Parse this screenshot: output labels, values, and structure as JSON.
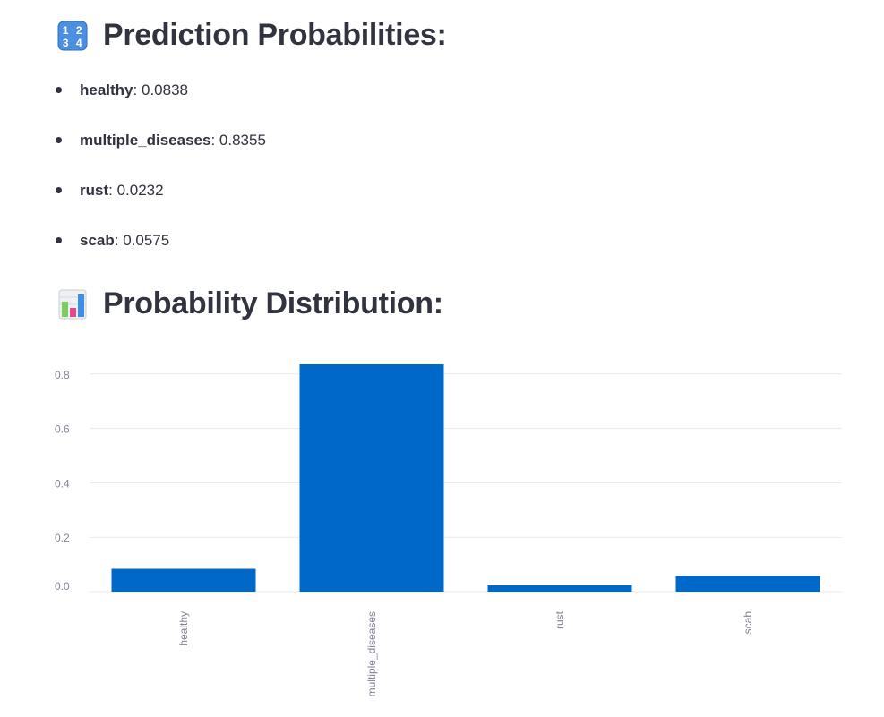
{
  "section1": {
    "icon": "input-numbers-icon",
    "title": "Prediction Probabilities:"
  },
  "probabilities": [
    {
      "label": "healthy",
      "value": "0.0838"
    },
    {
      "label": "multiple_diseases",
      "value": "0.8355"
    },
    {
      "label": "rust",
      "value": "0.0232"
    },
    {
      "label": "scab",
      "value": "0.0575"
    }
  ],
  "section2": {
    "icon": "bar-chart-icon",
    "title": "Probability Distribution:"
  },
  "colors": {
    "bar": "#0068c9",
    "text": "#31333f",
    "axis_text": "#808495",
    "grid": "#e6eaf1"
  },
  "chart_data": {
    "type": "bar",
    "categories": [
      "healthy",
      "multiple_diseases",
      "rust",
      "scab"
    ],
    "values": [
      0.0838,
      0.8355,
      0.0232,
      0.0575
    ],
    "title": "",
    "xlabel": "",
    "ylabel": "",
    "ylim": [
      0,
      0.85
    ],
    "yticks": [
      0.0,
      0.2,
      0.4,
      0.6,
      0.8
    ],
    "ytick_labels": [
      "0.0",
      "0.2",
      "0.4",
      "0.6",
      "0.8"
    ],
    "grid": true,
    "x_label_rotation": "vertical"
  }
}
